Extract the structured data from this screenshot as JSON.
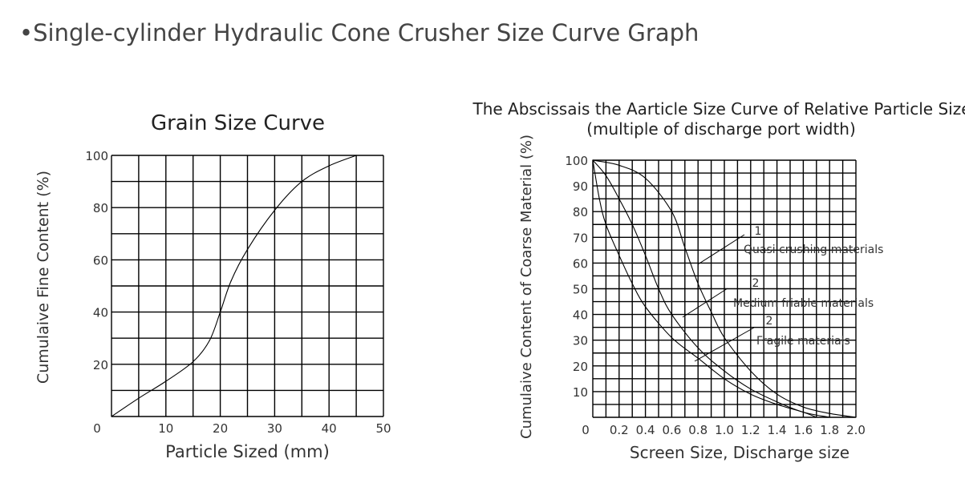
{
  "page": {
    "title": "•Single-cylinder Hydraulic Cone Crusher Size Curve Graph"
  },
  "chart_data": [
    {
      "type": "line",
      "title": "Grain Size Curve",
      "xlabel": "Particle Sized (mm)",
      "ylabel": "Cumulaive Fine Content (%)",
      "xlim": [
        0,
        50
      ],
      "ylim": [
        0,
        100
      ],
      "xticks": [
        0,
        10,
        20,
        30,
        40,
        50
      ],
      "yticks": [
        20,
        40,
        60,
        80,
        100
      ],
      "xtick_labels": [
        "10",
        "20",
        "30",
        "40",
        "50"
      ],
      "ytick_labels": [
        "20",
        "40",
        "60",
        "80",
        "100"
      ],
      "origin_label": "0",
      "grid": true,
      "series": [
        {
          "x": [
            0,
            5,
            10,
            15,
            18,
            20,
            22,
            25,
            30,
            35,
            40,
            45
          ],
          "y": [
            0,
            7,
            13.5,
            21,
            29,
            40,
            52,
            64,
            79,
            90,
            96,
            100
          ]
        }
      ]
    },
    {
      "type": "line",
      "title": "The Abscissais the Aarticle Size Curve of Relative Particle Size",
      "subtitle": "(multiple of discharge port width)",
      "xlabel": "Screen Size, Discharge size",
      "ylabel": "Cumulaive Content of Coarse Material (%)",
      "xlim": [
        0,
        2.0
      ],
      "ylim": [
        0,
        100
      ],
      "xticks": [
        0.2,
        0.4,
        0.6,
        0.8,
        1.0,
        1.2,
        1.4,
        1.6,
        1.8,
        2.0
      ],
      "yticks": [
        10,
        20,
        30,
        40,
        50,
        60,
        70,
        80,
        90,
        100
      ],
      "xtick_labels": [
        "0.2",
        "0.4",
        "0.6",
        "0.8",
        "1.0",
        "1.2",
        "1.4",
        "1.6",
        "1.8",
        "2.0"
      ],
      "ytick_labels": [
        "10",
        "20",
        "30",
        "40",
        "50",
        "60",
        "70",
        "80",
        "90",
        "100"
      ],
      "origin_label": "0",
      "grid": true,
      "series": [
        {
          "name": "Quasi crushing materials",
          "number_label": "1",
          "x": [
            0,
            0.2,
            0.4,
            0.6,
            0.7,
            0.8,
            0.9,
            1.0,
            1.2,
            1.4,
            1.6,
            1.8,
            2.0
          ],
          "y": [
            100,
            98,
            93,
            80,
            66,
            52,
            41,
            31,
            18,
            9,
            4,
            1.5,
            0
          ]
        },
        {
          "name": "Medium friable materials",
          "number_label": "2",
          "x": [
            0,
            0.1,
            0.2,
            0.3,
            0.4,
            0.5,
            0.6,
            0.8,
            1.0,
            1.2,
            1.4,
            1.6,
            1.8
          ],
          "y": [
            100,
            94,
            85,
            75,
            63,
            50,
            40,
            27,
            18,
            11,
            6,
            2,
            0
          ]
        },
        {
          "name": "Fragile materials",
          "number_label": "2",
          "x": [
            0,
            0.05,
            0.1,
            0.2,
            0.3,
            0.4,
            0.6,
            0.8,
            1.0,
            1.2,
            1.4,
            1.6,
            1.7
          ],
          "y": [
            100,
            85,
            75,
            63,
            52,
            43,
            31,
            23,
            15,
            9,
            5,
            2,
            0
          ]
        }
      ]
    }
  ]
}
